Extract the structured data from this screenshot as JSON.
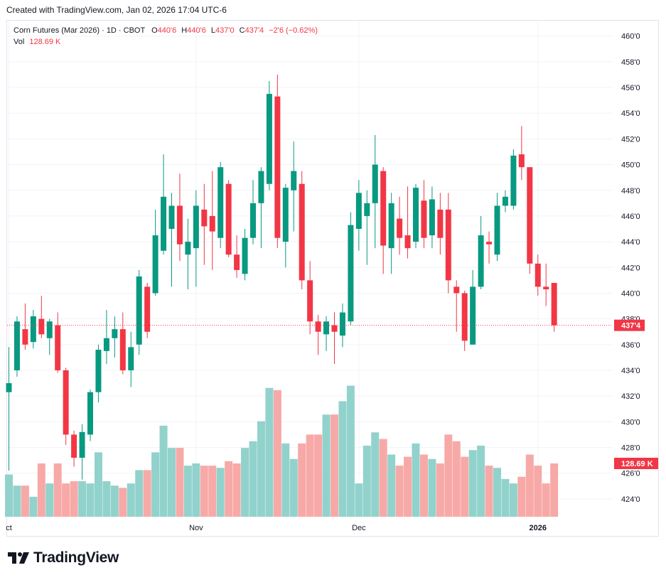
{
  "header": {
    "caption": "Created with TradingView.com, Jan 02, 2026 17:04 UTC-6"
  },
  "legend": {
    "symbol": "Corn Futures (Mar 2026) · 1D · CBOT",
    "o_label": "O",
    "o_value": "440'6",
    "h_label": "H",
    "h_value": "440'6",
    "l_label": "L",
    "l_value": "437'0",
    "c_label": "C",
    "c_value": "437'4",
    "change": "−2'6 (−0.62%)",
    "vol_label": "Vol",
    "vol_value": "128.69 K"
  },
  "brand": {
    "name": "TradingView"
  },
  "colors": {
    "up": "#089981",
    "down": "#f23645",
    "up_vol": "#92d2cc",
    "down_vol": "#f7a9a7",
    "grid": "#f0f3fa"
  },
  "chart_data": {
    "type": "candlestick",
    "price_axis": {
      "ylim": [
        422.5,
        461.2
      ],
      "ticks": [
        460,
        458,
        456,
        454,
        452,
        450,
        448,
        446,
        444,
        442,
        440,
        438,
        436,
        434,
        432,
        430,
        428,
        426,
        424
      ],
      "tick_labels": [
        "460'0",
        "458'0",
        "456'0",
        "454'0",
        "452'0",
        "450'0",
        "448'0",
        "446'0",
        "444'0",
        "442'0",
        "440'0",
        "438'0",
        "436'0",
        "434'0",
        "432'0",
        "430'0",
        "428'0",
        "426'0",
        "424'0"
      ],
      "last_price": 437.5,
      "last_price_label": "437'4",
      "last_volume_label": "128.69 K"
    },
    "time_axis": {
      "labels": [
        {
          "text": "ct",
          "index": 0
        },
        {
          "text": "Nov",
          "index": 23
        },
        {
          "text": "Dec",
          "index": 43
        },
        {
          "text": "2026",
          "index": 65
        }
      ]
    },
    "volume_max": 280,
    "candles": [
      {
        "o": 432.3,
        "h": 435.8,
        "l": 426.2,
        "c": 433.0,
        "v": 95
      },
      {
        "o": 434.0,
        "h": 438.2,
        "l": 433.5,
        "c": 437.8,
        "v": 70
      },
      {
        "o": 437.2,
        "h": 439.2,
        "l": 435.6,
        "c": 436.0,
        "v": 70
      },
      {
        "o": 436.2,
        "h": 438.7,
        "l": 435.7,
        "c": 438.2,
        "v": 45
      },
      {
        "o": 438.0,
        "h": 439.8,
        "l": 436.5,
        "c": 436.8,
        "v": 120
      },
      {
        "o": 436.5,
        "h": 438.0,
        "l": 435.2,
        "c": 437.8,
        "v": 75
      },
      {
        "o": 437.5,
        "h": 438.5,
        "l": 433.8,
        "c": 434.0,
        "v": 120
      },
      {
        "o": 434.0,
        "h": 434.2,
        "l": 428.2,
        "c": 429.0,
        "v": 75
      },
      {
        "o": 429.0,
        "h": 429.3,
        "l": 426.5,
        "c": 427.2,
        "v": 80
      },
      {
        "o": 427.2,
        "h": 429.8,
        "l": 425.5,
        "c": 429.2,
        "v": 80
      },
      {
        "o": 429.0,
        "h": 432.5,
        "l": 428.5,
        "c": 432.3,
        "v": 75
      },
      {
        "o": 432.3,
        "h": 436.0,
        "l": 431.5,
        "c": 435.6,
        "v": 145
      },
      {
        "o": 435.5,
        "h": 438.7,
        "l": 434.5,
        "c": 436.5,
        "v": 80
      },
      {
        "o": 436.5,
        "h": 438.2,
        "l": 435.0,
        "c": 437.2,
        "v": 70
      },
      {
        "o": 437.2,
        "h": 438.5,
        "l": 433.7,
        "c": 434.0,
        "v": 65
      },
      {
        "o": 434.0,
        "h": 437.0,
        "l": 432.7,
        "c": 435.8,
        "v": 75
      },
      {
        "o": 436.0,
        "h": 441.8,
        "l": 435.2,
        "c": 441.3,
        "v": 105
      },
      {
        "o": 440.5,
        "h": 440.8,
        "l": 436.5,
        "c": 437.0,
        "v": 105
      },
      {
        "o": 440.0,
        "h": 446.5,
        "l": 439.8,
        "c": 444.5,
        "v": 145
      },
      {
        "o": 443.3,
        "h": 450.8,
        "l": 443.0,
        "c": 447.5,
        "v": 205
      },
      {
        "o": 445.0,
        "h": 447.8,
        "l": 440.5,
        "c": 446.8,
        "v": 155
      },
      {
        "o": 446.8,
        "h": 449.3,
        "l": 442.5,
        "c": 443.8,
        "v": 155
      },
      {
        "o": 443.0,
        "h": 445.8,
        "l": 440.3,
        "c": 444.0,
        "v": 115
      },
      {
        "o": 443.5,
        "h": 448.0,
        "l": 440.5,
        "c": 446.8,
        "v": 120
      },
      {
        "o": 446.5,
        "h": 448.5,
        "l": 442.2,
        "c": 445.2,
        "v": 115
      },
      {
        "o": 446.0,
        "h": 449.5,
        "l": 441.8,
        "c": 444.8,
        "v": 115
      },
      {
        "o": 444.3,
        "h": 450.2,
        "l": 443.5,
        "c": 449.8,
        "v": 110
      },
      {
        "o": 448.5,
        "h": 448.8,
        "l": 442.8,
        "c": 443.0,
        "v": 125
      },
      {
        "o": 443.0,
        "h": 444.5,
        "l": 441.2,
        "c": 441.8,
        "v": 120
      },
      {
        "o": 441.5,
        "h": 445.0,
        "l": 441.0,
        "c": 444.3,
        "v": 155
      },
      {
        "o": 444.3,
        "h": 448.8,
        "l": 443.8,
        "c": 447.0,
        "v": 170
      },
      {
        "o": 447.0,
        "h": 449.8,
        "l": 443.5,
        "c": 449.5,
        "v": 215
      },
      {
        "o": 448.5,
        "h": 456.5,
        "l": 448.0,
        "c": 455.5,
        "v": 290
      },
      {
        "o": 455.3,
        "h": 457.0,
        "l": 443.5,
        "c": 444.3,
        "v": 285
      },
      {
        "o": 444.0,
        "h": 448.5,
        "l": 442.0,
        "c": 448.2,
        "v": 165
      },
      {
        "o": 448.0,
        "h": 451.8,
        "l": 444.8,
        "c": 449.5,
        "v": 130
      },
      {
        "o": 448.5,
        "h": 449.5,
        "l": 440.3,
        "c": 441.0,
        "v": 165
      },
      {
        "o": 441.0,
        "h": 442.5,
        "l": 436.8,
        "c": 437.8,
        "v": 185
      },
      {
        "o": 437.8,
        "h": 438.3,
        "l": 435.2,
        "c": 437.0,
        "v": 185
      },
      {
        "o": 436.8,
        "h": 438.2,
        "l": 435.5,
        "c": 437.8,
        "v": 230
      },
      {
        "o": 437.5,
        "h": 438.5,
        "l": 434.5,
        "c": 437.0,
        "v": 230
      },
      {
        "o": 436.7,
        "h": 439.2,
        "l": 435.8,
        "c": 438.5,
        "v": 260
      },
      {
        "o": 437.8,
        "h": 446.3,
        "l": 437.5,
        "c": 445.3,
        "v": 295
      },
      {
        "o": 445.0,
        "h": 448.8,
        "l": 443.3,
        "c": 447.8,
        "v": 75
      },
      {
        "o": 446.0,
        "h": 448.0,
        "l": 442.2,
        "c": 447.0,
        "v": 160
      },
      {
        "o": 447.0,
        "h": 452.3,
        "l": 443.5,
        "c": 450.0,
        "v": 190
      },
      {
        "o": 449.5,
        "h": 449.8,
        "l": 441.5,
        "c": 443.7,
        "v": 175
      },
      {
        "o": 443.5,
        "h": 447.8,
        "l": 441.5,
        "c": 447.0,
        "v": 140
      },
      {
        "o": 445.8,
        "h": 447.5,
        "l": 443.0,
        "c": 444.3,
        "v": 115
      },
      {
        "o": 444.5,
        "h": 448.3,
        "l": 442.7,
        "c": 443.5,
        "v": 135
      },
      {
        "o": 444.0,
        "h": 448.5,
        "l": 443.5,
        "c": 448.2,
        "v": 165
      },
      {
        "o": 447.2,
        "h": 448.8,
        "l": 443.5,
        "c": 444.3,
        "v": 140
      },
      {
        "o": 444.5,
        "h": 448.3,
        "l": 443.5,
        "c": 447.3,
        "v": 130
      },
      {
        "o": 446.5,
        "h": 447.8,
        "l": 443.0,
        "c": 444.3,
        "v": 120
      },
      {
        "o": 446.5,
        "h": 447.8,
        "l": 440.0,
        "c": 441.0,
        "v": 185
      },
      {
        "o": 440.5,
        "h": 441.0,
        "l": 437.0,
        "c": 440.0,
        "v": 170
      },
      {
        "o": 440.0,
        "h": 440.2,
        "l": 435.5,
        "c": 436.3,
        "v": 135
      },
      {
        "o": 436.0,
        "h": 441.8,
        "l": 436.0,
        "c": 440.5,
        "v": 150
      },
      {
        "o": 440.5,
        "h": 446.0,
        "l": 440.3,
        "c": 444.5,
        "v": 160
      },
      {
        "o": 444.0,
        "h": 444.8,
        "l": 442.3,
        "c": 443.8,
        "v": 115
      },
      {
        "o": 443.0,
        "h": 447.8,
        "l": 442.5,
        "c": 446.8,
        "v": 110
      },
      {
        "o": 446.8,
        "h": 448.0,
        "l": 446.3,
        "c": 447.5,
        "v": 85
      },
      {
        "o": 446.8,
        "h": 451.2,
        "l": 446.5,
        "c": 450.7,
        "v": 75
      },
      {
        "o": 450.8,
        "h": 453.0,
        "l": 448.8,
        "c": 449.8,
        "v": 90
      },
      {
        "o": 449.8,
        "h": 449.8,
        "l": 441.5,
        "c": 442.3,
        "v": 140
      },
      {
        "o": 442.3,
        "h": 443.0,
        "l": 439.8,
        "c": 440.5,
        "v": 115
      },
      {
        "o": 440.5,
        "h": 442.3,
        "l": 439.0,
        "c": 440.3,
        "v": 75
      },
      {
        "o": 440.8,
        "h": 440.8,
        "l": 437.0,
        "c": 437.5,
        "v": 120
      }
    ]
  }
}
